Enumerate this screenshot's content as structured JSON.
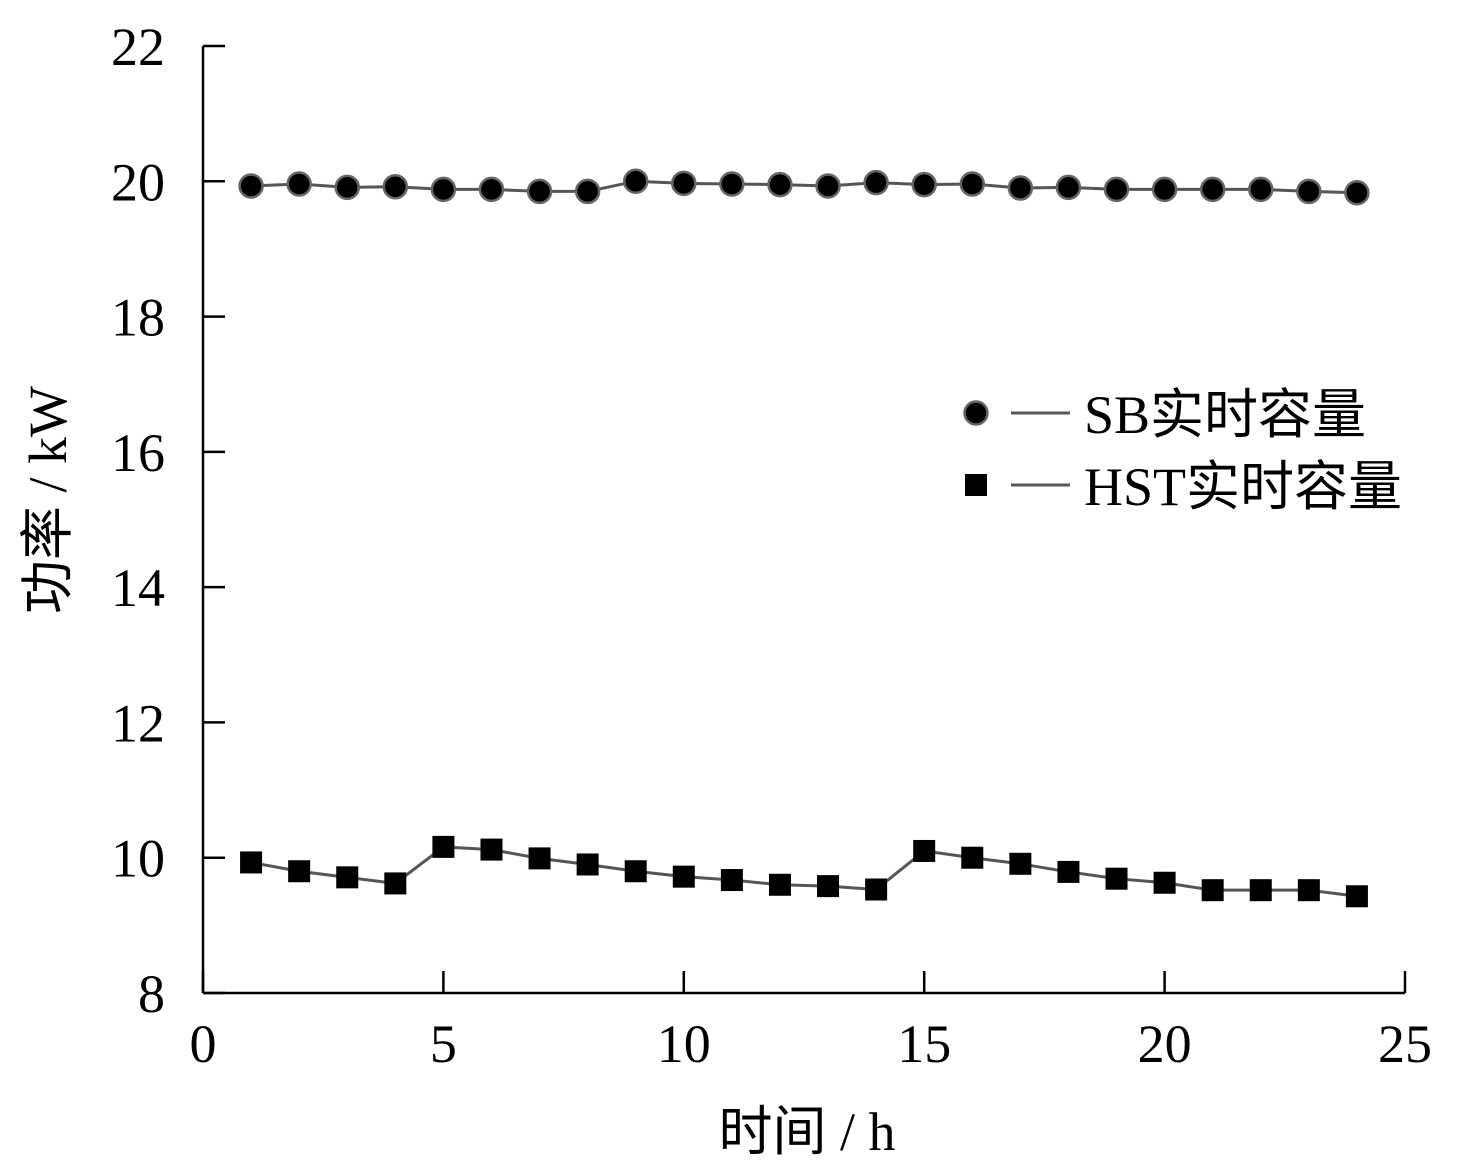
{
  "chart_data": {
    "type": "line",
    "xlabel": "时间 / h",
    "ylabel": "功率 / kW",
    "xlim": [
      0,
      25
    ],
    "ylim": [
      8,
      22
    ],
    "xticks": [
      0,
      5,
      10,
      15,
      20,
      25
    ],
    "yticks": [
      8,
      10,
      12,
      14,
      16,
      18,
      20,
      22
    ],
    "grid": false,
    "legend_position": "right-middle",
    "x": [
      1,
      2,
      3,
      4,
      5,
      6,
      7,
      8,
      9,
      10,
      11,
      12,
      13,
      14,
      15,
      16,
      17,
      18,
      19,
      20,
      21,
      22,
      23,
      24
    ],
    "series": [
      {
        "name": "SB实时容量",
        "marker": "circle",
        "color": "#000000",
        "line_color": "#555555",
        "values": [
          19.93,
          19.96,
          19.91,
          19.92,
          19.88,
          19.88,
          19.85,
          19.85,
          20.0,
          19.97,
          19.96,
          19.95,
          19.93,
          19.98,
          19.95,
          19.96,
          19.9,
          19.91,
          19.88,
          19.88,
          19.88,
          19.88,
          19.85,
          19.83
        ]
      },
      {
        "name": "HST实时容量",
        "marker": "square",
        "color": "#000000",
        "line_color": "#555555",
        "values": [
          9.93,
          9.8,
          9.71,
          9.62,
          10.16,
          10.12,
          9.99,
          9.9,
          9.8,
          9.72,
          9.67,
          9.6,
          9.58,
          9.53,
          10.1,
          10.0,
          9.91,
          9.79,
          9.69,
          9.63,
          9.52,
          9.52,
          9.52,
          9.43
        ]
      }
    ]
  }
}
